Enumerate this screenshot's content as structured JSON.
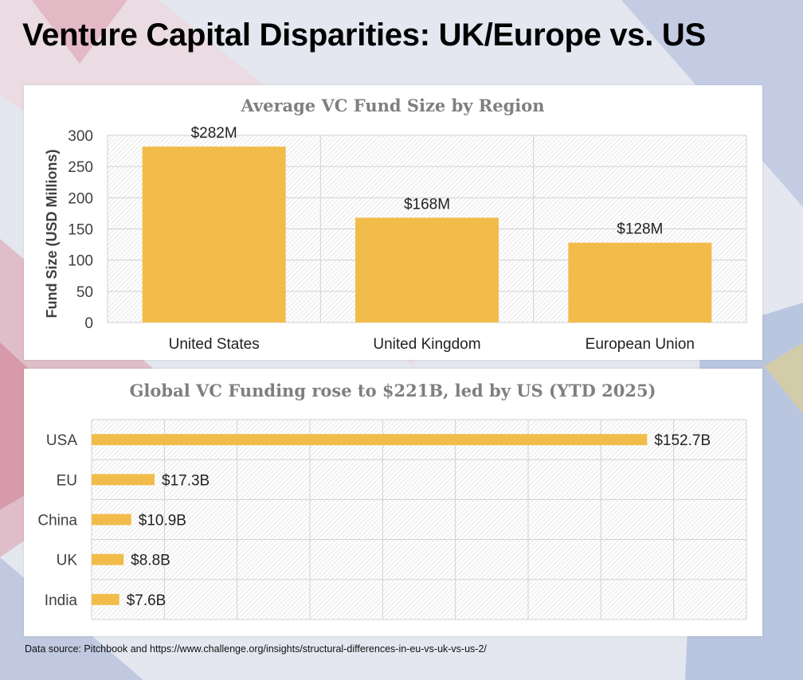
{
  "page": {
    "title": "Venture Capital Disparities: UK/Europe vs. US",
    "source_note": "Data source: Pitchbook and https://www.challenge.org/insights/structural-differences-in-eu-vs-uk-vs-us-2/"
  },
  "colors": {
    "bar": "#f2bc4a",
    "chart_title": "#7f7f7f",
    "label": "#404040",
    "grid": "#d0d0d0"
  },
  "chart_data": [
    {
      "type": "bar",
      "title": "Average VC Fund Size by Region",
      "ylabel": "Fund Size (USD Millions)",
      "xlabel": "",
      "categories": [
        "United States",
        "United Kingdom",
        "European Union"
      ],
      "values": [
        282,
        168,
        128
      ],
      "data_labels": [
        "$282M",
        "$168M",
        "$128M"
      ],
      "ylim": [
        0,
        300
      ],
      "yticks": [
        0,
        50,
        100,
        150,
        200,
        250,
        300
      ],
      "grid": true,
      "legend": "none"
    },
    {
      "type": "bar",
      "orientation": "horizontal",
      "title": "Global VC Funding rose to $221B, led by US (YTD 2025)",
      "xlabel": "",
      "ylabel": "",
      "categories": [
        "USA",
        "EU",
        "China",
        "UK",
        "India"
      ],
      "values": [
        152.7,
        17.3,
        10.9,
        8.8,
        7.6
      ],
      "data_labels": [
        "$152.7B",
        "$17.3B",
        "$10.9B",
        "$8.8B",
        "$7.6B"
      ],
      "xlim": [
        0,
        180
      ],
      "grid": true,
      "legend": "none"
    }
  ]
}
